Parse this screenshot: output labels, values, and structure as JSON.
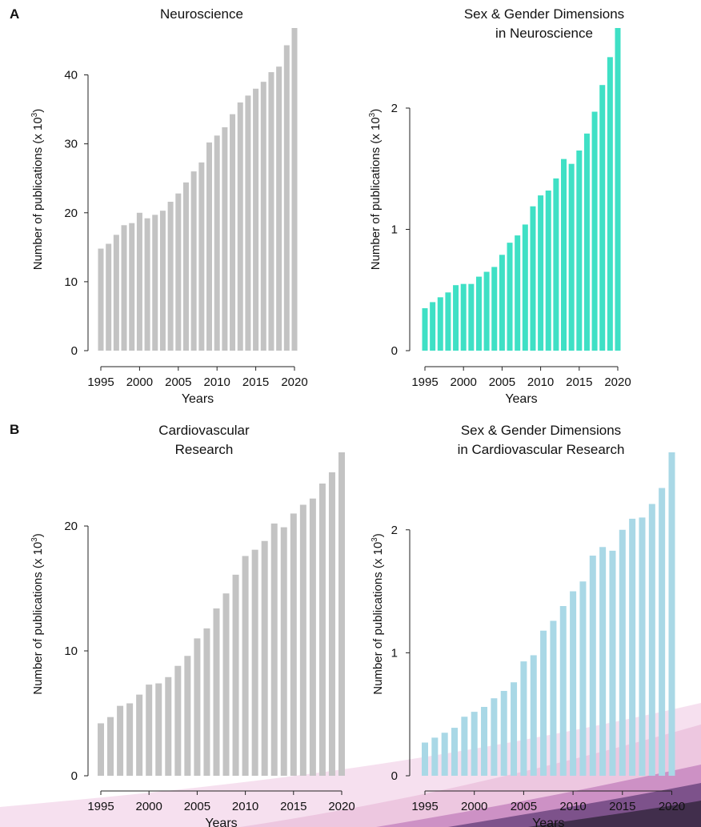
{
  "figure": {
    "panel_a_label": "A",
    "panel_b_label": "B"
  },
  "decoration": {
    "colors": [
      "#f3d6ea",
      "#e7b5d6",
      "#c27fbc",
      "#6f4680",
      "#3b2a45"
    ]
  },
  "chart_data": [
    {
      "type": "bar",
      "title": [
        "Neuroscience"
      ],
      "xlabel": "Years",
      "ylabel": "Number of publications (x 10",
      "ylabel_sup": "3",
      "ylabel_close": ")",
      "color": "#c3c3c3",
      "categories": [
        1995,
        1996,
        1997,
        1998,
        1999,
        2000,
        2001,
        2002,
        2003,
        2004,
        2005,
        2006,
        2007,
        2008,
        2009,
        2010,
        2011,
        2012,
        2013,
        2014,
        2015,
        2016,
        2017,
        2018,
        2019,
        2020
      ],
      "values": [
        14.8,
        15.5,
        16.8,
        18.2,
        18.5,
        20.0,
        19.2,
        19.7,
        20.3,
        21.6,
        22.8,
        24.4,
        26.0,
        27.3,
        30.2,
        31.2,
        32.4,
        34.3,
        36.0,
        37.0,
        38.0,
        39.0,
        40.4,
        41.2,
        44.3,
        46.8
      ],
      "ylim": [
        0,
        46.8
      ],
      "yticks": [
        0,
        10,
        20,
        30,
        40
      ],
      "xticks": [
        1995,
        2000,
        2005,
        2010,
        2015,
        2020
      ],
      "grid": false
    },
    {
      "type": "bar",
      "title": [
        "Sex & Gender Dimensions",
        "in Neuroscience"
      ],
      "xlabel": "Years",
      "ylabel": "Number of publications (x 10",
      "ylabel_sup": "3",
      "ylabel_close": ")",
      "color": "#3fe0c5",
      "categories": [
        1995,
        1996,
        1997,
        1998,
        1999,
        2000,
        2001,
        2002,
        2003,
        2004,
        2005,
        2006,
        2007,
        2008,
        2009,
        2010,
        2011,
        2012,
        2013,
        2014,
        2015,
        2016,
        2017,
        2018,
        2019,
        2020
      ],
      "values": [
        0.35,
        0.4,
        0.44,
        0.48,
        0.54,
        0.55,
        0.55,
        0.61,
        0.65,
        0.69,
        0.79,
        0.89,
        0.95,
        1.04,
        1.19,
        1.28,
        1.32,
        1.42,
        1.58,
        1.54,
        1.65,
        1.79,
        1.97,
        2.19,
        2.42,
        2.66
      ],
      "ylim": [
        0,
        2.66
      ],
      "yticks": [
        0,
        1,
        2
      ],
      "xticks": [
        1995,
        2000,
        2005,
        2010,
        2015,
        2020
      ],
      "grid": false
    },
    {
      "type": "bar",
      "title": [
        "Cardiovascular",
        "Research"
      ],
      "xlabel": "Years",
      "ylabel": "Number of publications (x 10",
      "ylabel_sup": "3",
      "ylabel_close": ")",
      "color": "#c3c3c3",
      "categories": [
        1995,
        1996,
        1997,
        1998,
        1999,
        2000,
        2001,
        2002,
        2003,
        2004,
        2005,
        2006,
        2007,
        2008,
        2009,
        2010,
        2011,
        2012,
        2013,
        2014,
        2015,
        2016,
        2017,
        2018,
        2019,
        2020
      ],
      "values": [
        4.2,
        4.7,
        5.6,
        5.8,
        6.5,
        7.3,
        7.4,
        7.9,
        8.8,
        9.6,
        11.0,
        11.8,
        13.4,
        14.6,
        16.1,
        17.6,
        18.1,
        18.8,
        20.2,
        19.9,
        21.0,
        21.7,
        22.2,
        23.4,
        24.3,
        25.9
      ],
      "ylim": [
        0,
        25.9
      ],
      "yticks": [
        0,
        10,
        20
      ],
      "xticks": [
        1995,
        2000,
        2005,
        2010,
        2015,
        2020
      ],
      "grid": false
    },
    {
      "type": "bar",
      "title": [
        "Sex & Gender Dimensions",
        "in Cardiovascular Research"
      ],
      "xlabel": "Years",
      "ylabel": "Number of publications (x 10",
      "ylabel_sup": "3",
      "ylabel_close": ")",
      "color": "#a9d8e6",
      "categories": [
        1995,
        1996,
        1997,
        1998,
        1999,
        2000,
        2001,
        2002,
        2003,
        2004,
        2005,
        2006,
        2007,
        2008,
        2009,
        2010,
        2011,
        2012,
        2013,
        2014,
        2015,
        2016,
        2017,
        2018,
        2019,
        2020
      ],
      "values": [
        0.27,
        0.31,
        0.35,
        0.39,
        0.48,
        0.52,
        0.56,
        0.63,
        0.69,
        0.76,
        0.93,
        0.98,
        1.18,
        1.26,
        1.38,
        1.5,
        1.58,
        1.79,
        1.86,
        1.83,
        2.0,
        2.09,
        2.1,
        2.21,
        2.34,
        2.63
      ],
      "ylim": [
        0,
        2.63
      ],
      "yticks": [
        0,
        1,
        2
      ],
      "xticks": [
        1995,
        2000,
        2005,
        2010,
        2015,
        2020
      ],
      "grid": false
    }
  ]
}
